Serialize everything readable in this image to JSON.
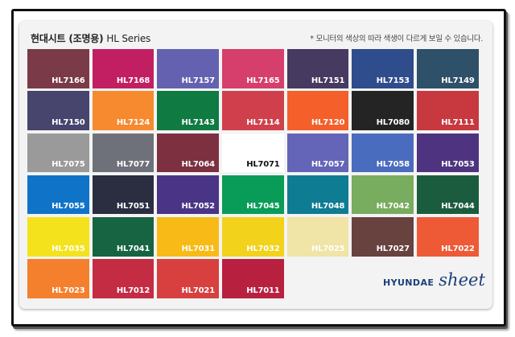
{
  "header": {
    "title_main": "현대시트 (조명용)",
    "title_series": "HL Series",
    "note": "* 모니터의 색상의 따라 색생이 다르게 보일 수 있습니다."
  },
  "brand": {
    "word1": "HYUNDAE",
    "word2": "sheet"
  },
  "swatches": [
    {
      "code": "HL7166",
      "color": "#7a3a48"
    },
    {
      "code": "HL7168",
      "color": "#c21f62"
    },
    {
      "code": "HL7157",
      "color": "#6462b0"
    },
    {
      "code": "HL7165",
      "color": "#d63e6c"
    },
    {
      "code": "HL7151",
      "color": "#463a60"
    },
    {
      "code": "HL7153",
      "color": "#2f4c8c"
    },
    {
      "code": "HL7149",
      "color": "#2e5068"
    },
    {
      "code": "HL7150",
      "color": "#47446e"
    },
    {
      "code": "HL7124",
      "color": "#f78a2e"
    },
    {
      "code": "HL7143",
      "color": "#0f7a42"
    },
    {
      "code": "HL7114",
      "color": "#d0404c"
    },
    {
      "code": "HL7120",
      "color": "#f45f2a"
    },
    {
      "code": "HL7080",
      "color": "#242424"
    },
    {
      "code": "HL7111",
      "color": "#c8383f"
    },
    {
      "code": "HL7075",
      "color": "#9a9a9a"
    },
    {
      "code": "HL7077",
      "color": "#6f717a"
    },
    {
      "code": "HL7064",
      "color": "#7c3040"
    },
    {
      "code": "HL7071",
      "color": "#ffffff",
      "light": true
    },
    {
      "code": "HL7057",
      "color": "#6464b8"
    },
    {
      "code": "HL7058",
      "color": "#4a6cbe"
    },
    {
      "code": "HL7053",
      "color": "#4e3480"
    },
    {
      "code": "HL7055",
      "color": "#0f73c8"
    },
    {
      "code": "HL7051",
      "color": "#2a2e40"
    },
    {
      "code": "HL7052",
      "color": "#4a3486"
    },
    {
      "code": "HL7045",
      "color": "#089c58"
    },
    {
      "code": "HL7048",
      "color": "#0e7c92"
    },
    {
      "code": "HL7042",
      "color": "#78ac5e"
    },
    {
      "code": "HL7044",
      "color": "#1c5c3e"
    },
    {
      "code": "HL7035",
      "color": "#f4e21c"
    },
    {
      "code": "HL7041",
      "color": "#176442"
    },
    {
      "code": "HL7031",
      "color": "#f8ba16"
    },
    {
      "code": "HL7032",
      "color": "#f2d21a"
    },
    {
      "code": "HL7025",
      "color": "#f0e4a6"
    },
    {
      "code": "HL7027",
      "color": "#67423e"
    },
    {
      "code": "HL7022",
      "color": "#ee5a36"
    },
    {
      "code": "HL7023",
      "color": "#f4802e"
    },
    {
      "code": "HL7012",
      "color": "#c42c44"
    },
    {
      "code": "HL7021",
      "color": "#d84040"
    },
    {
      "code": "HL7011",
      "color": "#b82040"
    }
  ]
}
